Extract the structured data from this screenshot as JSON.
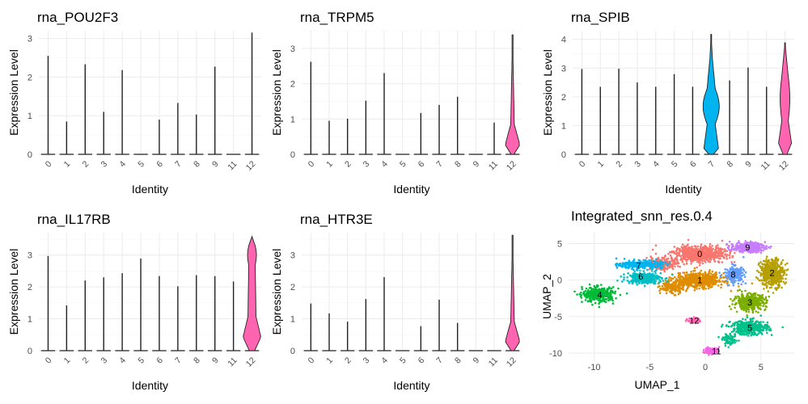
{
  "chart_data": [
    {
      "type": "violin",
      "title": "rna_POU2F3",
      "xlabel": "Identity",
      "ylabel": "Expression Level",
      "categories": [
        "0",
        "1",
        "2",
        "3",
        "4",
        "5",
        "6",
        "7",
        "8",
        "9",
        "11",
        "12"
      ],
      "ylim": [
        0,
        3.2
      ],
      "yticks": [
        0,
        1,
        2,
        3
      ],
      "max_values": [
        2.55,
        0.85,
        2.33,
        1.1,
        2.18,
        0,
        0.9,
        1.33,
        1.03,
        2.27,
        0,
        3.15
      ],
      "violin": {
        "category": "12",
        "shape": "thin"
      }
    },
    {
      "type": "violin",
      "title": "rna_TRPM5",
      "xlabel": "Identity",
      "ylabel": "Expression Level",
      "categories": [
        "0",
        "1",
        "2",
        "3",
        "4",
        "5",
        "6",
        "7",
        "8",
        "9",
        "11",
        "12"
      ],
      "ylim": [
        0,
        3.5
      ],
      "yticks": [
        0,
        1,
        2,
        3
      ],
      "max_values": [
        2.62,
        0.95,
        1.01,
        1.52,
        2.3,
        0,
        1.17,
        1.4,
        1.63,
        0,
        0.9,
        3.38
      ],
      "violin": {
        "category": "12",
        "shape": "pink-bottom"
      }
    },
    {
      "type": "violin",
      "title": "rna_SPIB",
      "xlabel": "Identity",
      "ylabel": "Expression Level",
      "categories": [
        "0",
        "1",
        "2",
        "3",
        "4",
        "5",
        "6",
        "7",
        "8",
        "9",
        "11",
        "12"
      ],
      "ylim": [
        0,
        4.3
      ],
      "yticks": [
        0,
        1,
        2,
        3,
        4
      ],
      "max_values": [
        2.97,
        2.35,
        2.98,
        2.5,
        2.35,
        2.79,
        2.35,
        4.17,
        2.57,
        3.02,
        2.35,
        3.88
      ],
      "violin": {
        "category": "7",
        "shape": "blue-wide",
        "second_category": "12"
      }
    },
    {
      "type": "violin",
      "title": "rna_IL17RB",
      "xlabel": "Identity",
      "ylabel": "Expression Level",
      "categories": [
        "0",
        "1",
        "2",
        "3",
        "4",
        "5",
        "6",
        "7",
        "8",
        "9",
        "11",
        "12"
      ],
      "ylim": [
        0,
        3.7
      ],
      "yticks": [
        0,
        1,
        2,
        3
      ],
      "max_values": [
        2.97,
        1.42,
        2.2,
        2.3,
        2.43,
        2.89,
        2.34,
        2.02,
        2.37,
        2.34,
        2.17,
        3.58
      ],
      "violin": {
        "category": "12",
        "shape": "pink-wide"
      }
    },
    {
      "type": "violin",
      "title": "rna_HTR3E",
      "xlabel": "Identity",
      "ylabel": "Expression Level",
      "categories": [
        "0",
        "1",
        "2",
        "3",
        "4",
        "5",
        "6",
        "7",
        "8",
        "9",
        "11",
        "12"
      ],
      "ylim": [
        0,
        3.7
      ],
      "yticks": [
        0,
        1,
        2,
        3
      ],
      "max_values": [
        1.48,
        1.17,
        0.91,
        1.62,
        2.31,
        0,
        0.77,
        1.6,
        0.87,
        0,
        0,
        3.62
      ],
      "violin": {
        "category": "12",
        "shape": "pink-bottom"
      }
    },
    {
      "type": "scatter",
      "title": "Integrated_snn_res.0.4",
      "xlabel": "UMAP_1",
      "ylabel": "UMAP_2",
      "xlim": [
        -12.3,
        8
      ],
      "ylim": [
        -11,
        6.5
      ],
      "xticks": [
        -10,
        -5,
        0,
        5
      ],
      "yticks": [
        -10,
        -5,
        0,
        5
      ],
      "clusters": [
        {
          "label": "0",
          "color": "#F8766D",
          "x": -0.5,
          "y": 3.6
        },
        {
          "label": "1",
          "color": "#DE8C00",
          "x": -0.5,
          "y": 0.0
        },
        {
          "label": "2",
          "color": "#B79F00",
          "x": 6.0,
          "y": 1.0
        },
        {
          "label": "3",
          "color": "#7CAE00",
          "x": 4.0,
          "y": -3.0
        },
        {
          "label": "4",
          "color": "#00BA38",
          "x": -9.5,
          "y": -2.0
        },
        {
          "label": "5",
          "color": "#00C08B",
          "x": 4.0,
          "y": -6.5
        },
        {
          "label": "6",
          "color": "#00BFC4",
          "x": -5.8,
          "y": 0.5
        },
        {
          "label": "7",
          "color": "#00B4F0",
          "x": -6.0,
          "y": 2.0
        },
        {
          "label": "8",
          "color": "#619CFF",
          "x": 2.5,
          "y": 0.8
        },
        {
          "label": "9",
          "color": "#C77CFF",
          "x": 3.8,
          "y": 4.5
        },
        {
          "label": "11",
          "color": "#F564E3",
          "x": 1.0,
          "y": -9.7
        },
        {
          "label": "12",
          "color": "#FF64B0",
          "x": -1.0,
          "y": -5.5
        }
      ]
    }
  ],
  "colors": {
    "violin_pink": "#FF64B0",
    "violin_blue": "#00B4F0",
    "grid": "#EBEBEB",
    "text": "#000000",
    "tick_text": "#4D4D4D"
  }
}
